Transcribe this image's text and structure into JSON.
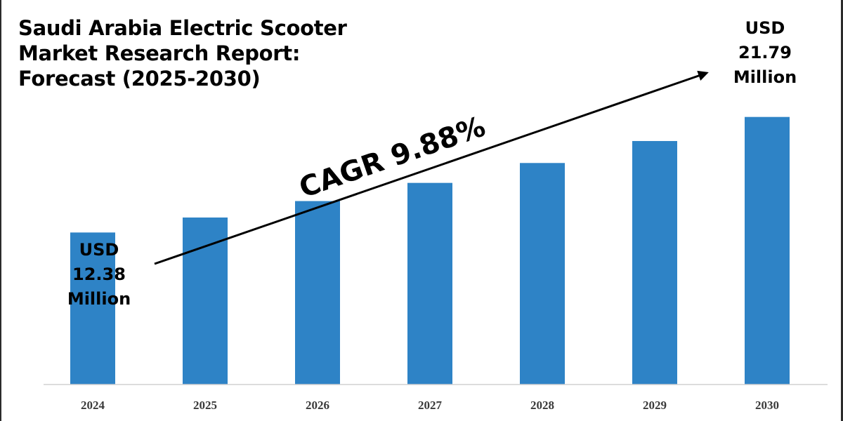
{
  "chart_data": {
    "type": "bar",
    "title": [
      "Saudi Arabia Electric Scooter",
      "Market Research Report:",
      "Forecast (2025-2030)"
    ],
    "categories": [
      "2024",
      "2025",
      "2026",
      "2027",
      "2028",
      "2029",
      "2030"
    ],
    "values": [
      12.38,
      13.6,
      14.94,
      16.42,
      18.04,
      19.83,
      21.79
    ],
    "ylim": [
      0,
      25.6
    ],
    "bar_color": "#2e83c6",
    "axis_color": "#d0d0d0",
    "grid": false,
    "legend": "none",
    "annotations": {
      "start_label": [
        "USD",
        "12.38",
        "Million"
      ],
      "end_label": [
        "USD",
        "21.79",
        "Million"
      ],
      "cagr_label": "CAGR 9.88%"
    }
  }
}
